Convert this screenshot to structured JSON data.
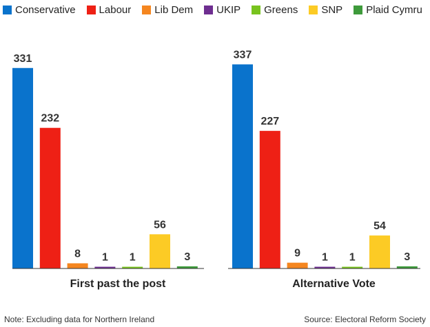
{
  "legend": [
    {
      "label": "Conservative",
      "color": "#0a73cc"
    },
    {
      "label": "Labour",
      "color": "#ee2015"
    },
    {
      "label": "Lib Dem",
      "color": "#f5861f"
    },
    {
      "label": "UKIP",
      "color": "#6e2e90"
    },
    {
      "label": "Greens",
      "color": "#78c31e"
    },
    {
      "label": "SNP",
      "color": "#fccb25"
    },
    {
      "label": "Plaid Cymru",
      "color": "#3e9a3b"
    }
  ],
  "chart_data": [
    {
      "type": "bar",
      "title": "First past the post",
      "categories": [
        "Conservative",
        "Labour",
        "Lib Dem",
        "UKIP",
        "Greens",
        "SNP",
        "Plaid Cymru"
      ],
      "values": [
        331,
        232,
        8,
        1,
        1,
        56,
        3
      ],
      "ylim": [
        0,
        350
      ],
      "grid": false,
      "legend": "top"
    },
    {
      "type": "bar",
      "title": "Alternative Vote",
      "categories": [
        "Conservative",
        "Labour",
        "Lib Dem",
        "UKIP",
        "Greens",
        "SNP",
        "Plaid Cymru"
      ],
      "values": [
        337,
        227,
        9,
        1,
        1,
        54,
        3
      ],
      "ylim": [
        0,
        350
      ],
      "grid": false,
      "legend": "top"
    }
  ],
  "notes": {
    "left": "Note: Excluding data for Northern Ireland",
    "right": "Source: Electoral Reform Society"
  }
}
